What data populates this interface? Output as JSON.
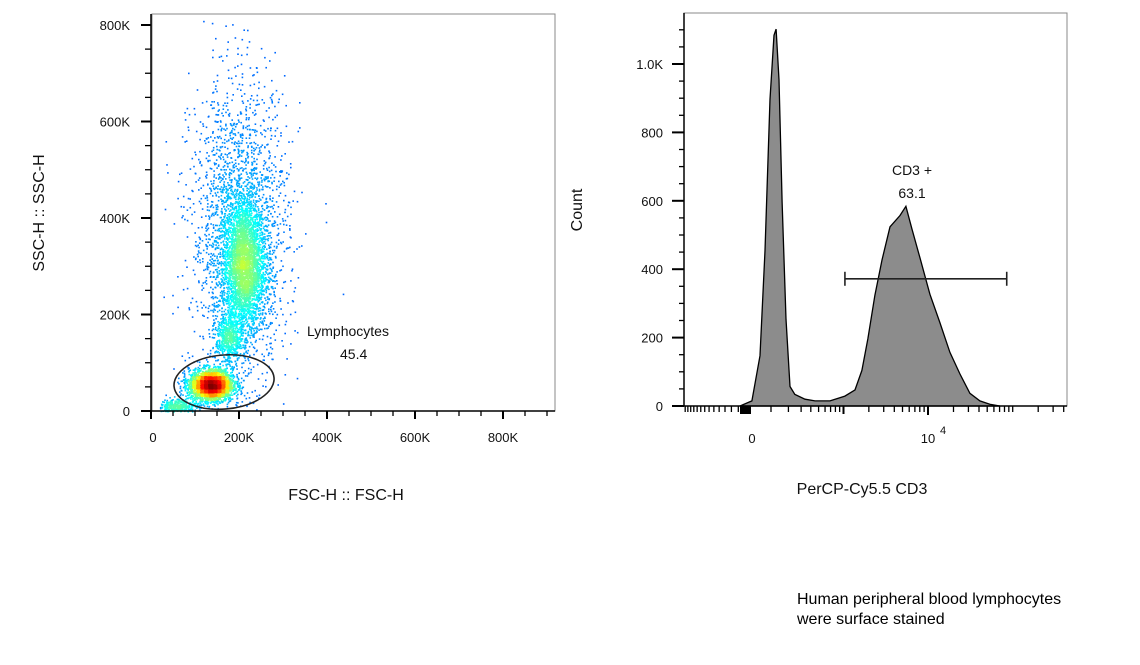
{
  "chart_data": [
    {
      "type": "scatter",
      "subtype": "density-dot-plot",
      "xlabel": "FSC-H :: FSC-H",
      "ylabel": "SSC-H :: SSC-H",
      "xlim": [
        0,
        918000
      ],
      "ylim": [
        0,
        823000
      ],
      "x_ticks": [
        {
          "v": 0,
          "label": "0"
        },
        {
          "v": 200000,
          "label": "200K"
        },
        {
          "v": 400000,
          "label": "400K"
        },
        {
          "v": 600000,
          "label": "600K"
        },
        {
          "v": 800000,
          "label": "800K"
        }
      ],
      "y_ticks": [
        {
          "v": 0,
          "label": "0"
        },
        {
          "v": 200000,
          "label": "200K"
        },
        {
          "v": 400000,
          "label": "400K"
        },
        {
          "v": 600000,
          "label": "600K"
        },
        {
          "v": 800000,
          "label": "800K"
        }
      ],
      "colormap": "jet (blue = low density, red = high density)",
      "populations": [
        {
          "center": [
            210000,
            300000
          ],
          "sd": [
            25000,
            70000
          ],
          "n": 3200
        },
        {
          "center": [
            200000,
            380000
          ],
          "sd": [
            55000,
            150000
          ],
          "n": 2200
        },
        {
          "center": [
            135000,
            55000
          ],
          "sd": [
            25000,
            16000
          ],
          "n": 3000
        },
        {
          "center": [
            175000,
            150000
          ],
          "sd": [
            15000,
            25000
          ],
          "n": 500
        },
        {
          "center": [
            60000,
            10000
          ],
          "sd": [
            22000,
            8000
          ],
          "n": 400
        }
      ],
      "gate": {
        "shape": "ellipse",
        "name": "Lymphocytes",
        "value": "45.4",
        "center": [
          166000,
          60000
        ],
        "radii": [
          114000,
          56000
        ],
        "rotation_deg": -5
      }
    },
    {
      "type": "area",
      "subtype": "histogram",
      "xlabel": "PerCP-Cy5.5  CD3",
      "ylabel": "Count",
      "x_scale": "biexponential (arcsinh, cofactor 150)",
      "xlim": [
        -420,
        435000
      ],
      "ylim": [
        0,
        1149
      ],
      "x_ticks": [
        {
          "v": 0,
          "label": "0"
        },
        {
          "v": 10000,
          "label": "10",
          "sup": "4"
        }
      ],
      "y_ticks": [
        {
          "v": 0,
          "label": "0"
        },
        {
          "v": 200,
          "label": "200"
        },
        {
          "v": 400,
          "label": "400"
        },
        {
          "v": 600,
          "label": "600"
        },
        {
          "v": 800,
          "label": "800"
        },
        {
          "v": 1000,
          "label": "1.0K"
        }
      ],
      "fill_color": "#8c8c8c",
      "x": [
        -33,
        16,
        50,
        72,
        95,
        115,
        126,
        142,
        160,
        184,
        211,
        247,
        337,
        451,
        688,
        1040,
        1370,
        1656,
        1948,
        2361,
        2859,
        3555,
        4665,
        5490,
        6465,
        8025,
        10530,
        13815,
        18135,
        23790,
        31200,
        40950,
        53700,
        70500
      ],
      "y": [
        0,
        15,
        150,
        450,
        900,
        1080,
        1105,
        950,
        600,
        250,
        60,
        30,
        20,
        15,
        15,
        25,
        50,
        100,
        200,
        320,
        430,
        520,
        560,
        580,
        520,
        430,
        330,
        240,
        160,
        90,
        40,
        15,
        5,
        0
      ],
      "gate": {
        "name": "CD3 +",
        "value": "63.1",
        "range": [
          1040,
          85000
        ],
        "level": 372
      }
    }
  ],
  "caption": {
    "line1": "Human peripheral blood lymphocytes",
    "line2": "were surface stained"
  }
}
